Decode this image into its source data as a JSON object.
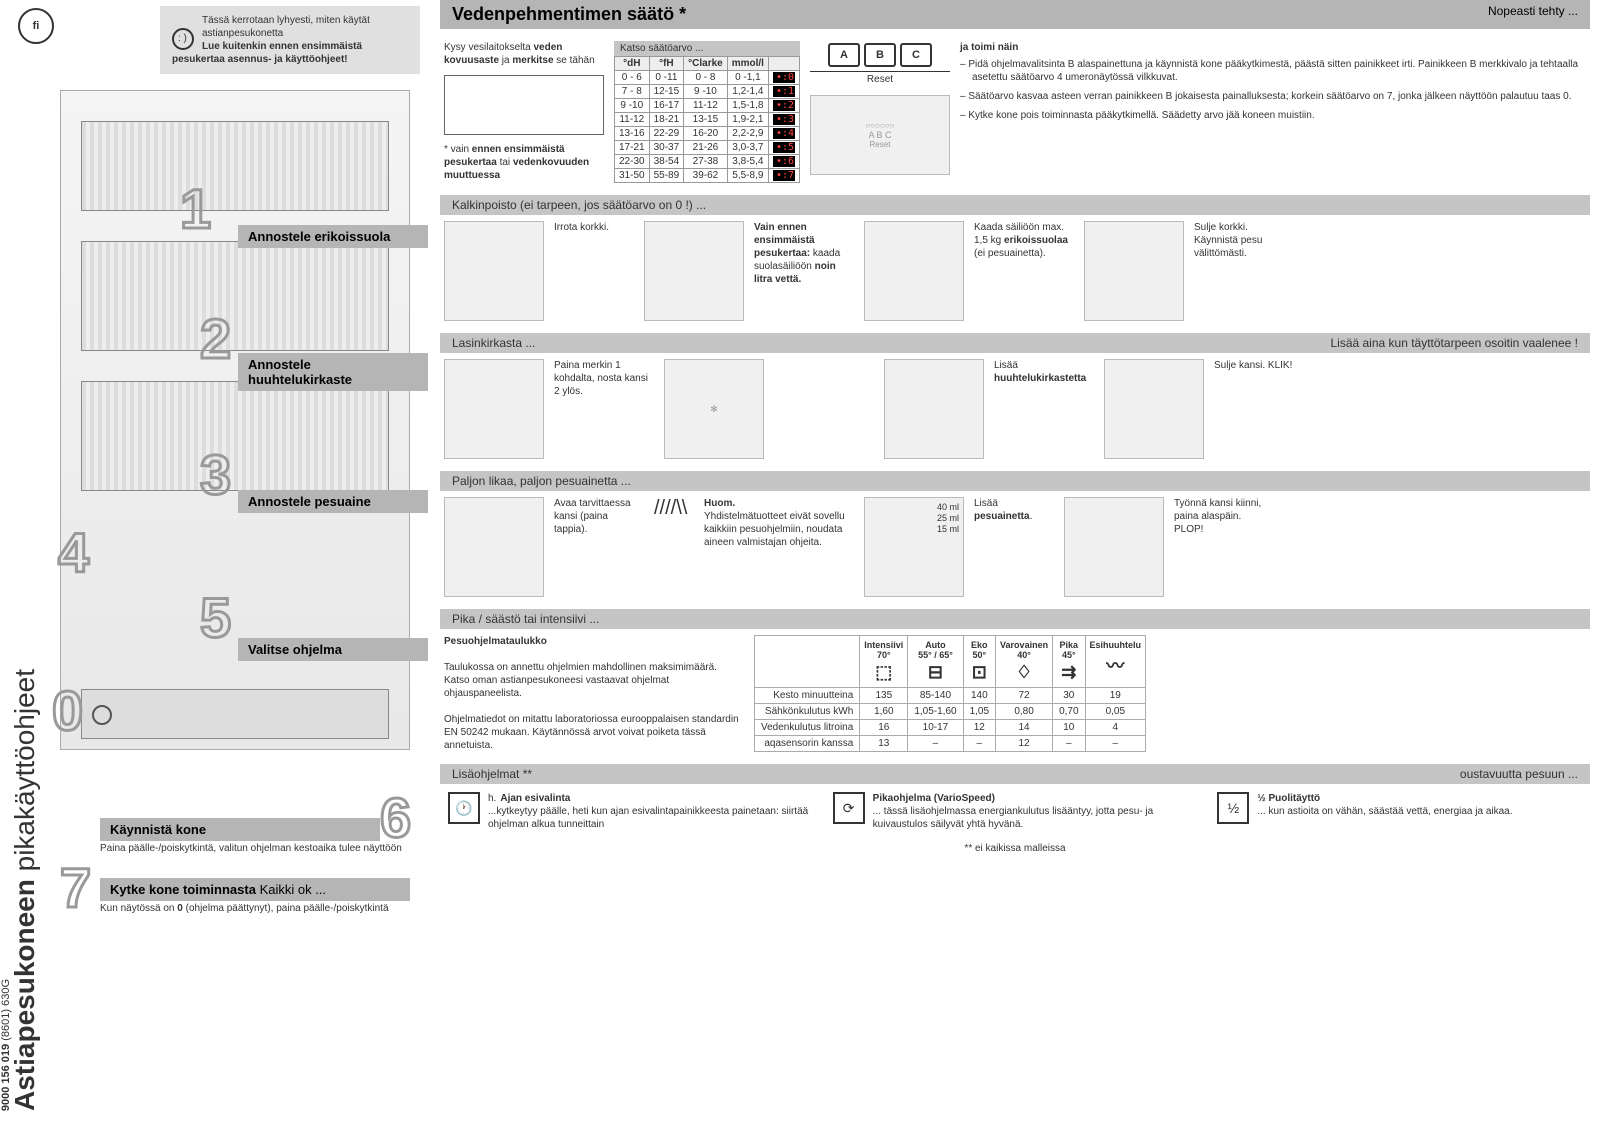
{
  "lang_code": "fi",
  "intro": {
    "line1": "Tässä kerrotaan lyhyesti, miten käytät astianpesukonetta",
    "line2_bold": "Lue kuitenkin ennen ensimmäistä pesukertaa asennus- ja käyttöohjeet!"
  },
  "vert_title_bold": "Astiapesukoneen",
  "vert_title_light": " pikakäyttöohjeet",
  "product_code": "9000 156 019",
  "product_suffix": "(8601)  630G",
  "steps": {
    "s1": "Annostele erikoissuola",
    "s2": "Annostele huuhtelukirkaste",
    "s3": "Annostele pesuaine",
    "s4": "",
    "s5": "Valitse ohjelma",
    "s6_title": "Käynnistä kone",
    "s6_text": "Paina päälle-/poiskytkintä, valitun ohjelman kestoaika tulee näyttöön",
    "s7_title": "Kytke kone toiminnasta",
    "s7_suffix": "Kaikki ok ...",
    "s7_text_a": "Kun näytössä on ",
    "s7_text_b": " (ohjelma päättynyt), paina päälle-/poiskytkintä",
    "s7_zero": "0"
  },
  "header": {
    "left": "Vedenpehmentimen säätö *",
    "right": "Nopeasti tehty ..."
  },
  "water": {
    "ask_a": "Kysy vesilaitokselta ",
    "ask_b": "veden kovuusaste",
    "ask_c": " ja ",
    "ask_d": "merkitse",
    "ask_e": " se tähän",
    "note_a": "* vain ",
    "note_b": "ennen ensimmäistä pesukertaa",
    "note_c": " tai ",
    "note_d": "vedenkovuuden muuttuessa",
    "table_caption": "Katso säätöarvo ...",
    "headers": [
      "°dH",
      "°fH",
      "°Clarke",
      "mmol/l"
    ],
    "rows": [
      {
        "cols": [
          "0 - 6",
          "0 -11",
          "0 - 8",
          "0 -1,1"
        ],
        "led": "•:0"
      },
      {
        "cols": [
          "7 - 8",
          "12-15",
          "9 -10",
          "1,2-1,4"
        ],
        "led": "•:1"
      },
      {
        "cols": [
          "9 -10",
          "16-17",
          "11-12",
          "1,5-1,8"
        ],
        "led": "•:2"
      },
      {
        "cols": [
          "11-12",
          "18-21",
          "13-15",
          "1,9-2,1"
        ],
        "led": "•:3"
      },
      {
        "cols": [
          "13-16",
          "22-29",
          "16-20",
          "2,2-2,9"
        ],
        "led": "•:4"
      },
      {
        "cols": [
          "17-21",
          "30-37",
          "21-26",
          "3,0-3,7"
        ],
        "led": "•:5"
      },
      {
        "cols": [
          "22-30",
          "38-54",
          "27-38",
          "3,8-5,4"
        ],
        "led": "•:6"
      },
      {
        "cols": [
          "31-50",
          "55-89",
          "39-62",
          "5,5-8,9"
        ],
        "led": "•:7"
      }
    ],
    "keys": [
      "A",
      "B",
      "C"
    ],
    "reset": "Reset",
    "panel2_reset": "Reset",
    "instr_title": "ja toimi näin",
    "instr": [
      "Pidä ohjelmavalitsinta B alaspainettuna ja käynnistä kone pääkytkimestä, päästä sitten painikkeet irti. Painikkeen B merkkivalo ja tehtaalla asetettu säätöarvo 4 umeronäytössä vilkkuvat.",
      "Säätöarvo kasvaa asteen verran painikkeen B jokaisesta painalluksesta; korkein säätöarvo on 7, jonka jälkeen näyttöön palautuu taas 0.",
      "Kytke kone pois toiminnasta pääkytkimellä. Säädetty arvo jää koneen muistiin."
    ]
  },
  "salt": {
    "bar": "Kalkinpoisto (ei tarpeen, jos säätöarvo on 0 !) ...",
    "t1": "Irrota korkki.",
    "t2_a": "Vain ennen ensimmäistä pesukertaa:",
    "t2_b": " kaada suolasäiliöön ",
    "t2_c": "noin litra vettä.",
    "t3_a": "Kaada säiliöön max. 1,5 kg ",
    "t3_b": "erikoissuolaa",
    "t3_c": " (ei pesuainetta).",
    "t4": "Sulje korkki. Käynnistä pesu välittömästi."
  },
  "rinse": {
    "bar_left": "Lasinkirkasta ...",
    "bar_right": "Lisää aina kun täyttötarpeen osoitin vaalenee !",
    "t1": "Paina merkin 1 kohdalta, nosta kansi 2 ylös.",
    "t2_a": "Lisää ",
    "t2_b": "huuhtelukirkastetta",
    "t3": "Sulje kansi. KLIK!"
  },
  "detergent": {
    "bar": "Paljon likaa, paljon pesuainetta ...",
    "t1": "Avaa tarvittaessa kansi (paina tappia).",
    "note_title": "Huom.",
    "note": "Yhdistelmätuotteet eivät sovellu kaikkiin pesuohjelmiin, noudata aineen valmistajan ohjeita.",
    "ml": [
      "40 ml",
      "25 ml",
      "15 ml"
    ],
    "t2_a": "Lisää ",
    "t2_b": "pesuainetta",
    "t2_c": ".",
    "t3": "Työnnä kansi kiinni, paina alaspäin. PLOP!"
  },
  "program": {
    "bar": "Pika / säästö tai intensiivi ...",
    "title": "Pesuohjelmataulukko",
    "desc1": "Taulukossa on annettu ohjelmien mahdollinen maksimimäärä. Katso oman astianpesukoneesi vastaavat ohjelmat ohjauspaneelista.",
    "desc2": "Ohjelmatiedot on mitattu laboratoriossa eurooppalaisen standardin EN 50242 mukaan. Käytännössä arvot voivat poiketa tässä annetuista.",
    "cols": [
      {
        "name": "Intensiivi",
        "deg": "70°",
        "icon": "⬚"
      },
      {
        "name": "Auto",
        "deg": "55° / 65°",
        "icon": "⊟"
      },
      {
        "name": "Eko",
        "deg": "50°",
        "icon": "⊡"
      },
      {
        "name": "Varovainen",
        "deg": "40°",
        "icon": "♢"
      },
      {
        "name": "Pika",
        "deg": "45°",
        "icon": "⇉"
      },
      {
        "name": "Esihuuhtelu",
        "deg": "",
        "icon": "〰"
      }
    ],
    "rows": [
      {
        "label": "Kesto minuutteina",
        "v": [
          "135",
          "85-140",
          "140",
          "72",
          "30",
          "19"
        ]
      },
      {
        "label": "Sähkönkulutus kWh",
        "v": [
          "1,60",
          "1,05-1,60",
          "1,05",
          "0,80",
          "0,70",
          "0,05"
        ]
      },
      {
        "label": "Vedenkulutus litroina",
        "v": [
          "16",
          "10-17",
          "12",
          "14",
          "10",
          "4"
        ]
      },
      {
        "label": "aqasensorin kanssa",
        "v": [
          "13",
          "–",
          "–",
          "12",
          "–",
          "–"
        ]
      }
    ]
  },
  "sub": {
    "bar_left": "Lisäohjelmat **",
    "bar_right": "oustavuutta pesuun ...",
    "items": [
      {
        "icon": "🕐",
        "title": "Ajan esivalinta",
        "pfx": "h.",
        "text": "...kytkeytyy päälle, heti kun ajan esivalintapainikkeesta painetaan: siirtää ohjelman alkua tunneittain"
      },
      {
        "icon": "⟳",
        "title": "Pikaohjelma (VarioSpeed)",
        "pfx": "",
        "text": "... tässä lisäohjelmassa energiankulutus lisääntyy, jotta pesu- ja kuivaustulos säilyvät yhtä hyvänä."
      },
      {
        "icon": "½",
        "title": "½ Puolitäyttö",
        "pfx": "",
        "text": "... kun astioita on vähän, säästää vettä, energiaa ja aikaa."
      }
    ],
    "footer": "** ei kaikissa malleissa"
  },
  "colors": {
    "bar": "#b5b5b5",
    "barlight": "#c5c5c5"
  }
}
